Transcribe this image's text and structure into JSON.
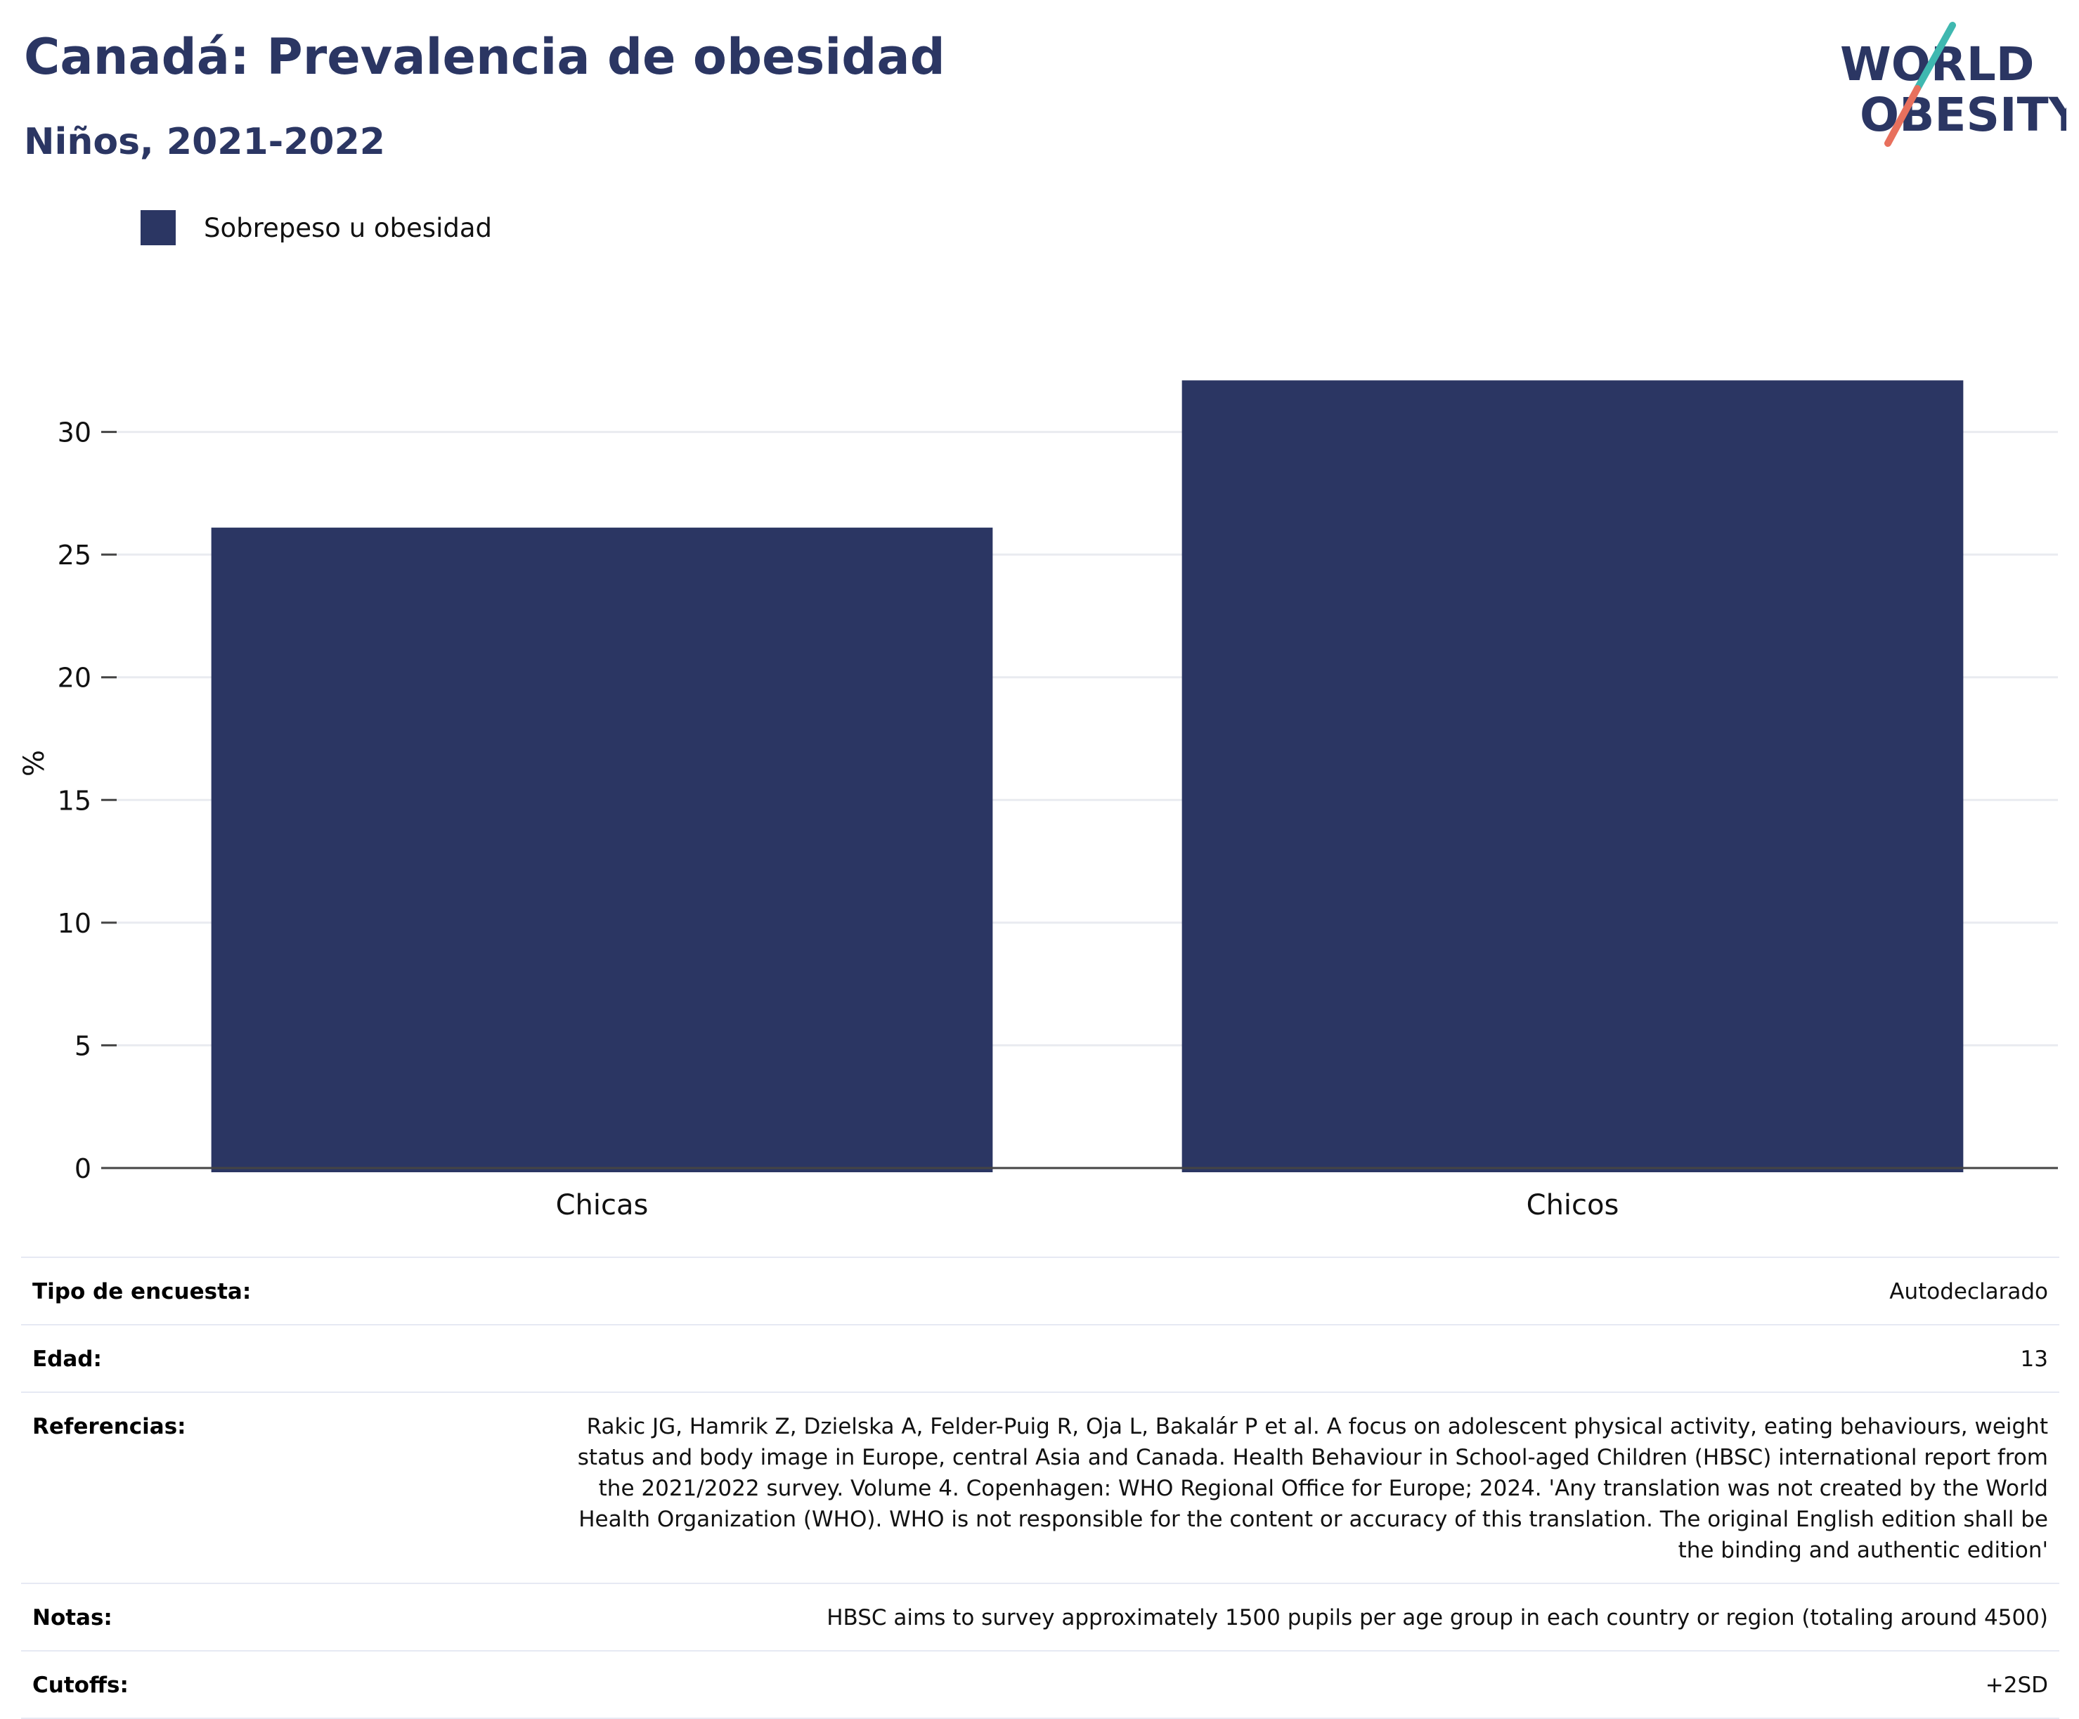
{
  "header": {
    "title": "Canadá: Prevalencia de obesidad",
    "subtitle": "Niños, 2021-2022"
  },
  "logo": {
    "line1": "WORLD",
    "line2": "OBESITY",
    "colors": {
      "text": "#2b3663",
      "slash_teal": "#3fb8b0",
      "slash_coral": "#e8705d"
    }
  },
  "legend": [
    {
      "label": "Sobrepeso u obesidad",
      "color": "#2b3663"
    }
  ],
  "chart_data": {
    "type": "bar",
    "categories": [
      "Chicas",
      "Chicos"
    ],
    "series": [
      {
        "name": "Sobrepeso u obesidad",
        "values": [
          26.1,
          32.1
        ],
        "color": "#2b3663"
      }
    ],
    "xlabel": "",
    "ylabel": "%",
    "ylim": [
      0,
      35
    ],
    "yticks": [
      0,
      5,
      10,
      15,
      20,
      25,
      30
    ],
    "grid": true,
    "legend_position": "top-left"
  },
  "metadata": [
    {
      "label": "Tipo de encuesta:",
      "value": "Autodeclarado"
    },
    {
      "label": "Edad:",
      "value": "13"
    },
    {
      "label": "Referencias:",
      "value": "Rakic JG, Hamrik Z, Dzielska A, Felder-Puig R, Oja L, Bakalár P et al. A focus on adolescent physical activity, eating behaviours, weight status and body image in Europe, central Asia and Canada. Health Behaviour in School-aged Children (HBSC) international report from the 2021/2022 survey. Volume 4. Copenhagen: WHO Regional Office for Europe; 2024. 'Any translation was not created by the World Health Organization (WHO). WHO is not responsible for the content or accuracy of this translation. The original English edition shall be the binding and authentic edition'"
    },
    {
      "label": "Notas:",
      "value": "HBSC aims to survey approximately 1500 pupils per age group in each country or region (totaling around 4500)"
    },
    {
      "label": "Cutoffs:",
      "value": "+2SD"
    }
  ]
}
